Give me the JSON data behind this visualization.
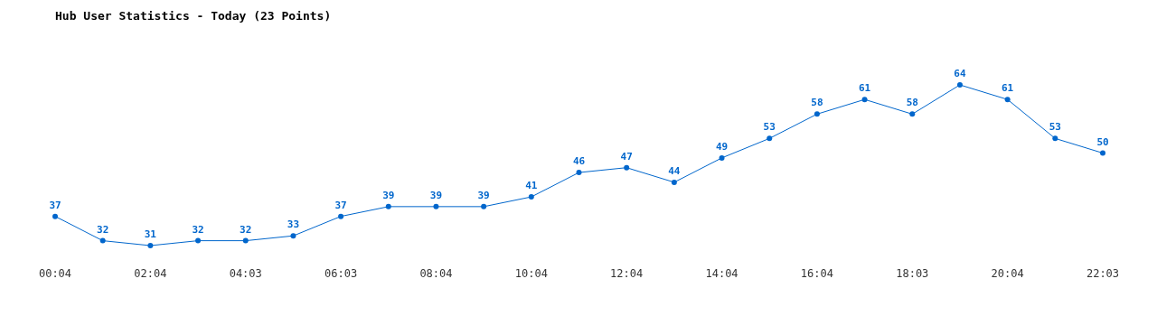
{
  "chart_data": {
    "type": "line",
    "title": "Hub User Statistics - Today (23 Points)",
    "categories": [
      "00:04",
      null,
      "02:04",
      null,
      "04:03",
      null,
      "06:03",
      null,
      "08:04",
      null,
      "10:04",
      null,
      "12:04",
      null,
      "14:04",
      null,
      "16:04",
      null,
      "18:03",
      null,
      "20:04",
      null,
      "22:03"
    ],
    "values": [
      37,
      32,
      31,
      32,
      32,
      33,
      37,
      39,
      39,
      39,
      41,
      46,
      47,
      44,
      49,
      53,
      58,
      61,
      58,
      64,
      61,
      53,
      50
    ],
    "color": "#0066cc",
    "marker": "circle",
    "data_labels": true
  }
}
